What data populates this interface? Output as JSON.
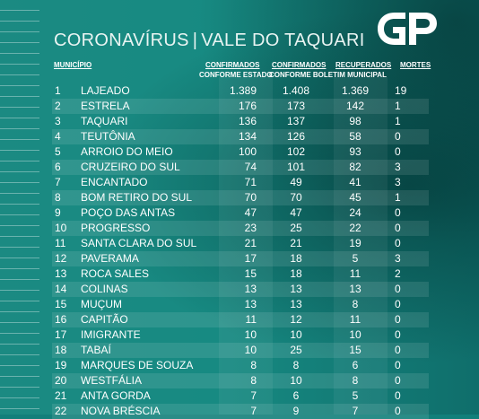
{
  "title": {
    "part1": "CORONAVÍRUS",
    "separator": "|",
    "part2": "VALE DO TAQUARI"
  },
  "logo": {
    "text": "GP"
  },
  "headers": {
    "municipio": "MUNICÍPIO",
    "confirmados": "CONFIRMADOS",
    "conforme_estado": "CONFORME ESTADO",
    "confirmados2": "CONFIRMADOS",
    "conforme_boletim": "CONFORME BOLETIM MUNICIPAL",
    "recuperados": "RECUPERADOS",
    "mortes": "MORTES"
  },
  "rows": [
    {
      "rank": "1",
      "municipio": "LAJEADO",
      "confirmados": "1.389",
      "boletim": "1.408",
      "recuperados": "1.369",
      "mortes": "19"
    },
    {
      "rank": "2",
      "municipio": "ESTRELA",
      "confirmados": "176",
      "boletim": "173",
      "recuperados": "142",
      "mortes": "1"
    },
    {
      "rank": "3",
      "municipio": "TAQUARI",
      "confirmados": "136",
      "boletim": "137",
      "recuperados": "98",
      "mortes": "1"
    },
    {
      "rank": "4",
      "municipio": "TEUTÔNIA",
      "confirmados": "134",
      "boletim": "126",
      "recuperados": "58",
      "mortes": "0"
    },
    {
      "rank": "5",
      "municipio": "ARROIO DO MEIO",
      "confirmados": "100",
      "boletim": "102",
      "recuperados": "93",
      "mortes": "0"
    },
    {
      "rank": "6",
      "municipio": "CRUZEIRO DO SUL",
      "confirmados": "74",
      "boletim": "101",
      "recuperados": "82",
      "mortes": "3"
    },
    {
      "rank": "7",
      "municipio": "ENCANTADO",
      "confirmados": "71",
      "boletim": "49",
      "recuperados": "41",
      "mortes": "3"
    },
    {
      "rank": "8",
      "municipio": "BOM RETIRO DO SUL",
      "confirmados": "70",
      "boletim": "70",
      "recuperados": "45",
      "mortes": "1"
    },
    {
      "rank": "9",
      "municipio": "POÇO DAS ANTAS",
      "confirmados": "47",
      "boletim": "47",
      "recuperados": "24",
      "mortes": "0"
    },
    {
      "rank": "10",
      "municipio": "PROGRESSO",
      "confirmados": "23",
      "boletim": "25",
      "recuperados": "22",
      "mortes": "0"
    },
    {
      "rank": "11",
      "municipio": "SANTA CLARA DO SUL",
      "confirmados": "21",
      "boletim": "21",
      "recuperados": "19",
      "mortes": "0"
    },
    {
      "rank": "12",
      "municipio": "PAVERAMA",
      "confirmados": "17",
      "boletim": "18",
      "recuperados": "5",
      "mortes": "3"
    },
    {
      "rank": "13",
      "municipio": "ROCA SALES",
      "confirmados": "15",
      "boletim": "18",
      "recuperados": "11",
      "mortes": "2"
    },
    {
      "rank": "14",
      "municipio": "COLINAS",
      "confirmados": "13",
      "boletim": "13",
      "recuperados": "13",
      "mortes": "0"
    },
    {
      "rank": "15",
      "municipio": "MUÇUM",
      "confirmados": "13",
      "boletim": "13",
      "recuperados": "8",
      "mortes": "0"
    },
    {
      "rank": "16",
      "municipio": "CAPITÃO",
      "confirmados": "11",
      "boletim": "12",
      "recuperados": "11",
      "mortes": "0"
    },
    {
      "rank": "17",
      "municipio": "IMIGRANTE",
      "confirmados": "10",
      "boletim": "10",
      "recuperados": "10",
      "mortes": "0"
    },
    {
      "rank": "18",
      "municipio": "TABAÍ",
      "confirmados": "10",
      "boletim": "25",
      "recuperados": "15",
      "mortes": "0"
    },
    {
      "rank": "19",
      "municipio": "MARQUES DE SOUZA",
      "confirmados": "8",
      "boletim": "8",
      "recuperados": "6",
      "mortes": "0"
    },
    {
      "rank": "20",
      "municipio": "WESTFÁLIA",
      "confirmados": "8",
      "boletim": "10",
      "recuperados": "8",
      "mortes": "0"
    },
    {
      "rank": "21",
      "municipio": "ANTA GORDA",
      "confirmados": "7",
      "boletim": "6",
      "recuperados": "5",
      "mortes": "0"
    },
    {
      "rank": "22",
      "municipio": "NOVA BRÉSCIA",
      "confirmados": "7",
      "boletim": "9",
      "recuperados": "7",
      "mortes": "0"
    }
  ]
}
